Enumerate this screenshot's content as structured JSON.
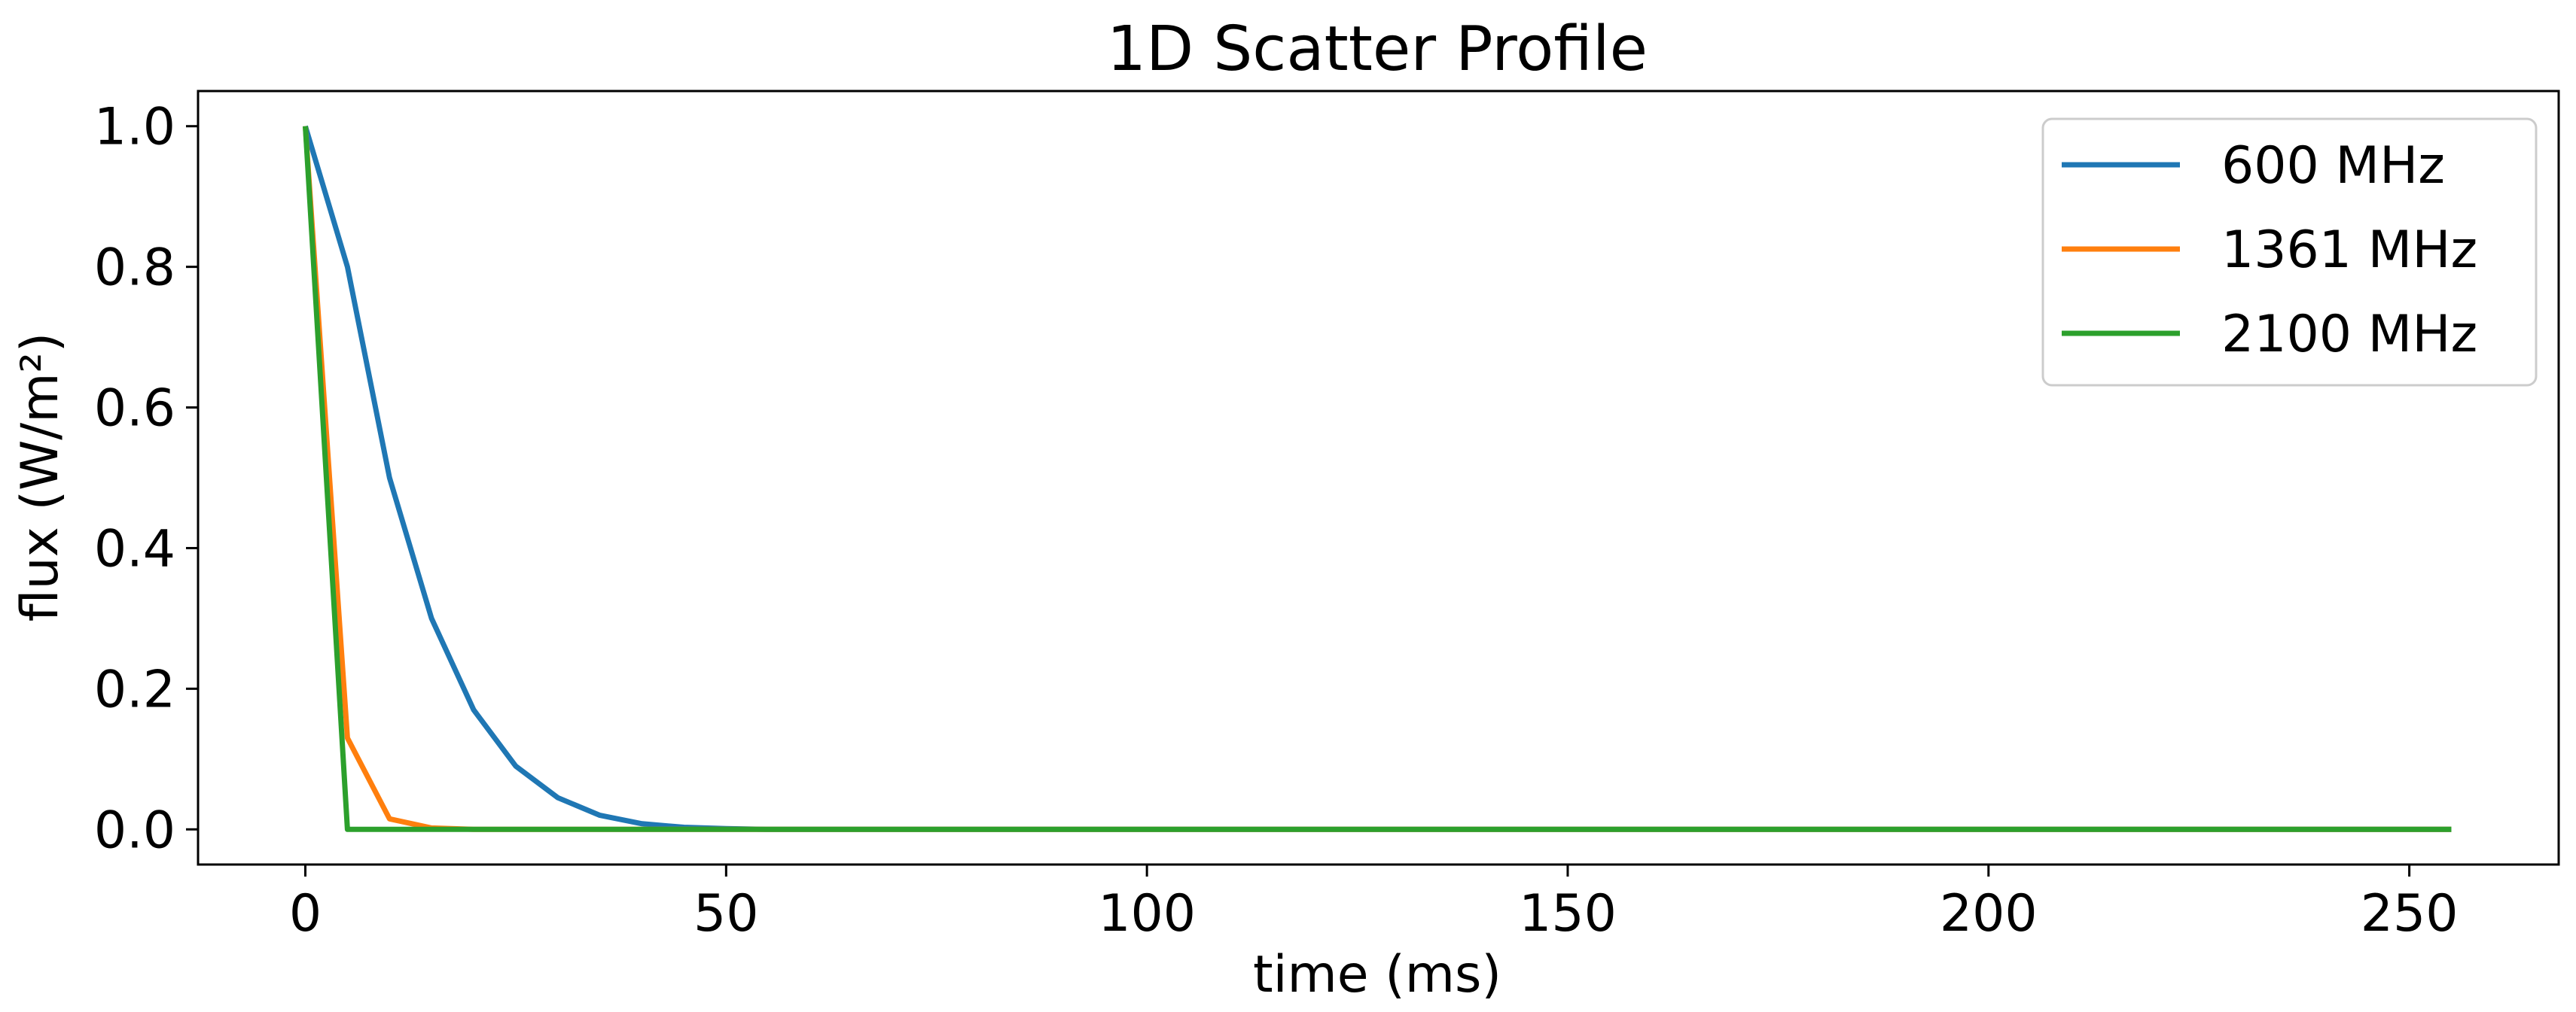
{
  "chart_data": {
    "type": "line",
    "title": "1D Scatter Profile",
    "xlabel": "time (ms)",
    "ylabel": "flux (W/m²)",
    "xlim": [
      -12.75,
      267.75
    ],
    "ylim": [
      -0.05,
      1.05
    ],
    "xticks": [
      0,
      50,
      100,
      150,
      200,
      250
    ],
    "yticks": [
      0.0,
      0.2,
      0.4,
      0.6,
      0.8,
      1.0
    ],
    "xtick_labels": [
      "0",
      "50",
      "100",
      "150",
      "200",
      "250"
    ],
    "ytick_labels": [
      "0.0",
      "0.2",
      "0.4",
      "0.6",
      "0.8",
      "1.0"
    ],
    "grid": false,
    "legend_position": "top-right",
    "x_range": [
      0,
      255
    ],
    "series": [
      {
        "name": "600 MHz",
        "color": "#1f77b4",
        "values": [
          1.0,
          0.8,
          0.5,
          0.3,
          0.17,
          0.09,
          0.045,
          0.02,
          0.008,
          0.003,
          0.001,
          0.0,
          0.0,
          0.0,
          0.0,
          0.0,
          0.0,
          0.0,
          0.0,
          0.0,
          0.0,
          0.0,
          0.0,
          0.0,
          0.0,
          0.0,
          0.0,
          0.0,
          0.0,
          0.0,
          0.0,
          0.0,
          0.0,
          0.0,
          0.0,
          0.0,
          0.0,
          0.0,
          0.0,
          0.0,
          0.0,
          0.0,
          0.0,
          0.0,
          0.0,
          0.0,
          0.0,
          0.0,
          0.0,
          0.0,
          0.0,
          0.0
        ]
      },
      {
        "name": "1361 MHz",
        "color": "#ff7f0e",
        "values": [
          1.0,
          0.13,
          0.015,
          0.002,
          0.0,
          0.0,
          0.0,
          0.0,
          0.0,
          0.0,
          0.0,
          0.0,
          0.0,
          0.0,
          0.0,
          0.0,
          0.0,
          0.0,
          0.0,
          0.0,
          0.0,
          0.0,
          0.0,
          0.0,
          0.0,
          0.0,
          0.0,
          0.0,
          0.0,
          0.0,
          0.0,
          0.0,
          0.0,
          0.0,
          0.0,
          0.0,
          0.0,
          0.0,
          0.0,
          0.0,
          0.0,
          0.0,
          0.0,
          0.0,
          0.0,
          0.0,
          0.0,
          0.0,
          0.0,
          0.0,
          0.0,
          0.0
        ]
      },
      {
        "name": "2100 MHz",
        "color": "#2ca02c",
        "values": [
          1.0,
          0.0,
          0.0,
          0.0,
          0.0,
          0.0,
          0.0,
          0.0,
          0.0,
          0.0,
          0.0,
          0.0,
          0.0,
          0.0,
          0.0,
          0.0,
          0.0,
          0.0,
          0.0,
          0.0,
          0.0,
          0.0,
          0.0,
          0.0,
          0.0,
          0.0,
          0.0,
          0.0,
          0.0,
          0.0,
          0.0,
          0.0,
          0.0,
          0.0,
          0.0,
          0.0,
          0.0,
          0.0,
          0.0,
          0.0,
          0.0,
          0.0,
          0.0,
          0.0,
          0.0,
          0.0,
          0.0,
          0.0,
          0.0,
          0.0,
          0.0,
          0.0
        ]
      }
    ]
  }
}
